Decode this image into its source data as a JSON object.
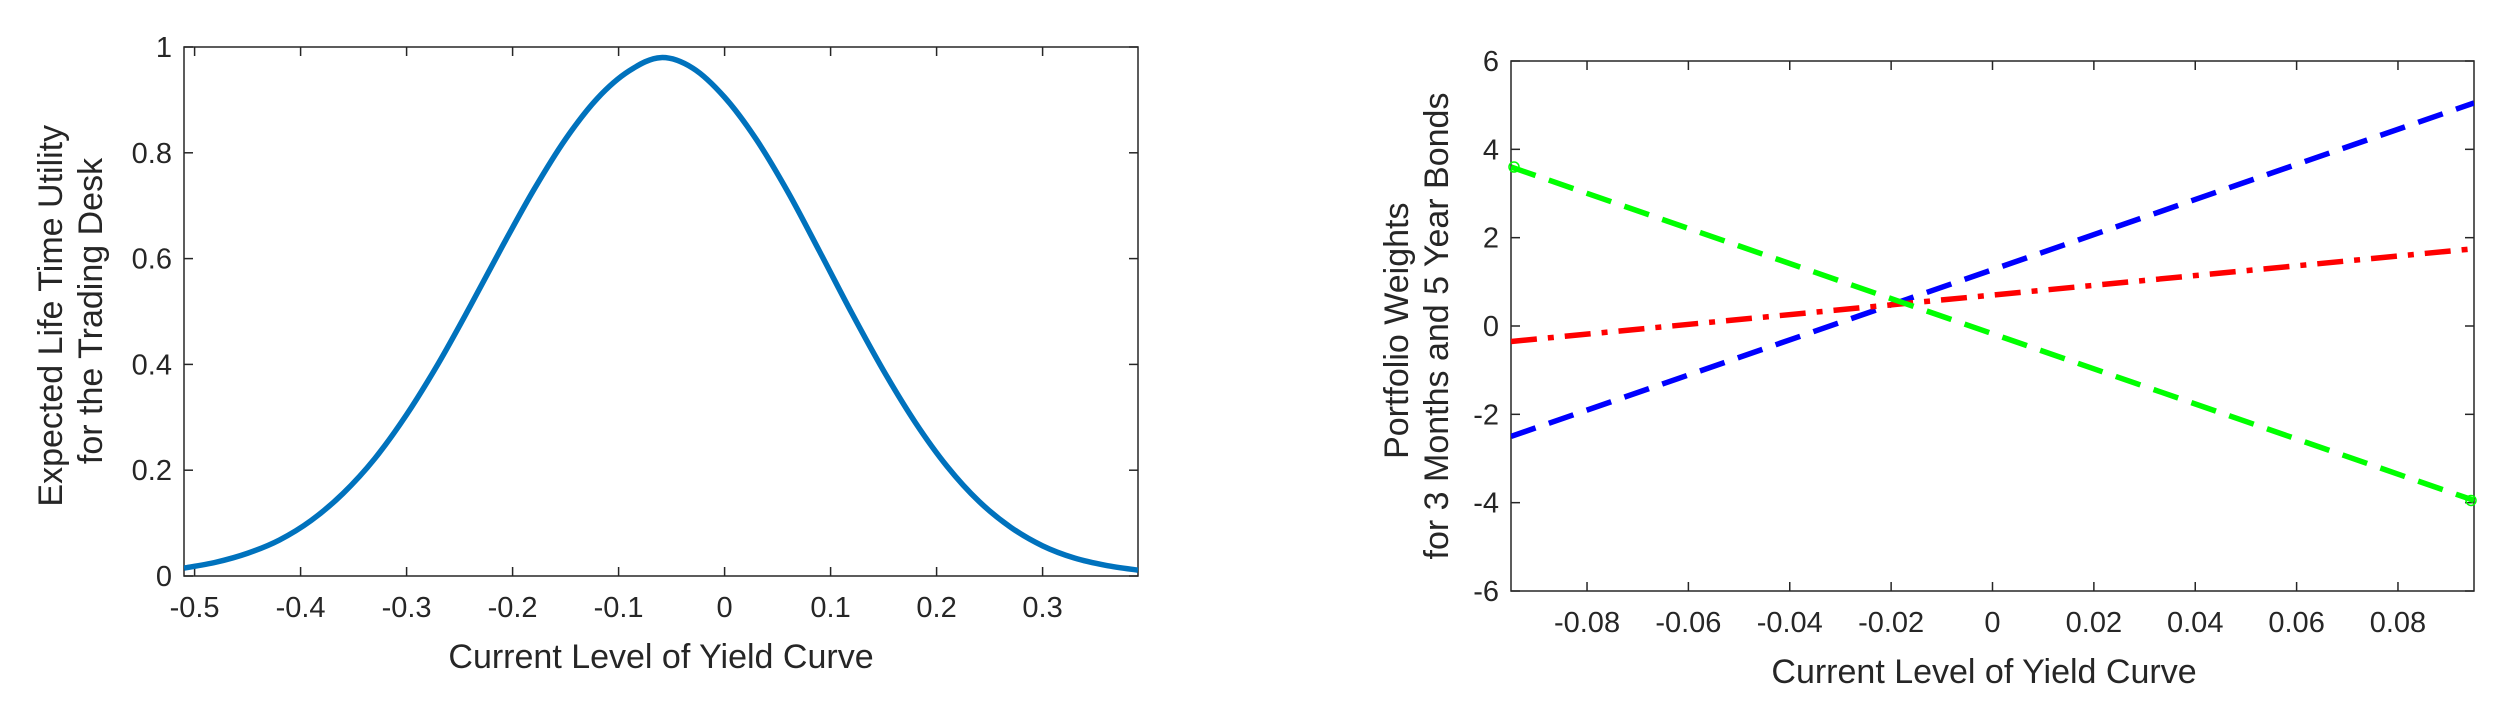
{
  "chart_data": [
    {
      "type": "line",
      "title": "",
      "xlabel": "Current Level of Yield Curve",
      "ylabel_lines": [
        "Expected Life Time Utility",
        "for the Trading Desk"
      ],
      "xlim": [
        -0.51,
        0.39
      ],
      "ylim": [
        0,
        1
      ],
      "xticks": [
        -0.5,
        -0.4,
        -0.3,
        -0.2,
        -0.1,
        0,
        0.1,
        0.2,
        0.3
      ],
      "xtick_labels": [
        "-0.5",
        "-0.4",
        "-0.3",
        "-0.2",
        "-0.1",
        "0",
        "0.1",
        "0.2",
        "0.3"
      ],
      "yticks": [
        0,
        0.2,
        0.4,
        0.6,
        0.8,
        1
      ],
      "ytick_labels": [
        "0",
        "0.2",
        "0.4",
        "0.6",
        "0.8",
        "1"
      ],
      "grid": false,
      "series": [
        {
          "name": "Expected Life Time Utility",
          "color": "#0072BD",
          "style": "solid",
          "x": [
            -0.51,
            -0.48,
            -0.45,
            -0.42,
            -0.39,
            -0.36,
            -0.33,
            -0.3,
            -0.27,
            -0.24,
            -0.21,
            -0.18,
            -0.15,
            -0.12,
            -0.09,
            -0.06,
            -0.03,
            0.0,
            0.03,
            0.06,
            0.09,
            0.12,
            0.15,
            0.18,
            0.21,
            0.24,
            0.27,
            0.3,
            0.33,
            0.36,
            0.39
          ],
          "y": [
            0.015,
            0.026,
            0.043,
            0.068,
            0.105,
            0.156,
            0.222,
            0.305,
            0.402,
            0.51,
            0.622,
            0.73,
            0.826,
            0.903,
            0.955,
            0.98,
            0.96,
            0.905,
            0.825,
            0.725,
            0.612,
            0.497,
            0.388,
            0.29,
            0.207,
            0.141,
            0.092,
            0.057,
            0.034,
            0.02,
            0.011
          ]
        }
      ]
    },
    {
      "type": "line",
      "title": "",
      "xlabel": "Current Level of Yield Curve",
      "ylabel_lines": [
        "Portfolio Weights",
        "for 3 Months and 5 Year Bonds"
      ],
      "xlim": [
        -0.095,
        0.095
      ],
      "ylim": [
        -6,
        6
      ],
      "xticks": [
        -0.08,
        -0.06,
        -0.04,
        -0.02,
        0,
        0.02,
        0.04,
        0.06,
        0.08
      ],
      "xtick_labels": [
        "-0.08",
        "-0.06",
        "-0.04",
        "-0.02",
        "0",
        "0.02",
        "0.04",
        "0.06",
        "0.08"
      ],
      "yticks": [
        -6,
        -4,
        -2,
        0,
        2,
        4,
        6
      ],
      "ytick_labels": [
        "-6",
        "-4",
        "-2",
        "0",
        "2",
        "4",
        "6"
      ],
      "grid": false,
      "series": [
        {
          "name": "Blue dashed",
          "color": "#0000FF",
          "style": "dashed",
          "x": [
            -0.095,
            0.095
          ],
          "y": [
            -2.5,
            5.05
          ]
        },
        {
          "name": "Red dash-dot",
          "color": "#FF0000",
          "style": "dashdot",
          "x": [
            -0.095,
            0.095
          ],
          "y": [
            -0.35,
            1.75
          ]
        },
        {
          "name": "Green dashed",
          "color": "#00FF00",
          "style": "dashed",
          "x": [
            -0.095,
            0.095
          ],
          "y": [
            3.6,
            -3.95
          ],
          "end_markers": true
        }
      ]
    }
  ]
}
